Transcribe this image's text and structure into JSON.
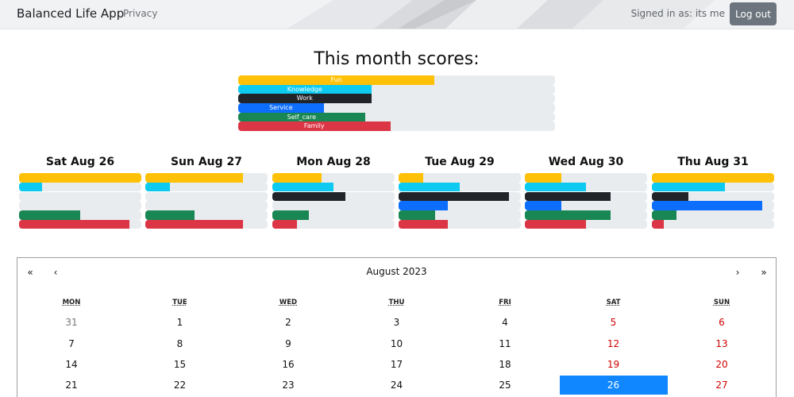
{
  "navbar": {
    "brand": "Balanced Life App",
    "privacy_link": "Privacy",
    "signed_in_text": "Signed in as: its me",
    "logout_label": "Log out"
  },
  "colors": {
    "fun": "#ffc107",
    "knowledge": "#0dcaf0",
    "work": "#212529",
    "service": "#0d6efd",
    "self_care": "#198754",
    "family": "#dc3545",
    "track": "#e9ecef",
    "selected_day": "#1087ff"
  },
  "month_scores": {
    "title": "This month scores:",
    "bars": [
      {
        "label": "Fun",
        "color_key": "fun",
        "fraction": 0.62
      },
      {
        "label": "Knowledge",
        "color_key": "knowledge",
        "fraction": 0.42
      },
      {
        "label": "Work",
        "color_key": "work",
        "fraction": 0.42
      },
      {
        "label": "Service",
        "color_key": "service",
        "fraction": 0.27
      },
      {
        "label": "Self_care",
        "color_key": "self_care",
        "fraction": 0.4
      },
      {
        "label": "Family",
        "color_key": "family",
        "fraction": 0.48
      }
    ]
  },
  "days": [
    {
      "title": "Sat Aug 26",
      "values": [
        1.0,
        0.19,
        0.0,
        0.0,
        0.5,
        0.9
      ]
    },
    {
      "title": "Sun Aug 27",
      "values": [
        0.8,
        0.2,
        0.0,
        0.0,
        0.4,
        0.8
      ]
    },
    {
      "title": "Mon Aug 28",
      "values": [
        0.4,
        0.5,
        0.6,
        0.0,
        0.3,
        0.2
      ]
    },
    {
      "title": "Tue Aug 29",
      "values": [
        0.2,
        0.5,
        0.9,
        0.4,
        0.3,
        0.4
      ]
    },
    {
      "title": "Wed Aug 30",
      "values": [
        0.3,
        0.5,
        0.7,
        0.3,
        0.7,
        0.5
      ]
    },
    {
      "title": "Thu Aug 31",
      "values": [
        1.0,
        0.6,
        0.3,
        0.9,
        0.2,
        0.1
      ]
    }
  ],
  "category_order": [
    "fun",
    "knowledge",
    "work",
    "service",
    "self_care",
    "family"
  ],
  "calendar": {
    "prev_year": "«",
    "prev_month": "‹",
    "next_month": "›",
    "next_year": "»",
    "month_label": "August 2023",
    "weekdays": [
      "MON",
      "TUE",
      "WED",
      "THU",
      "FRI",
      "SAT",
      "SUN"
    ],
    "weeks": [
      [
        {
          "d": "31",
          "t": "neighbor"
        },
        {
          "d": "1"
        },
        {
          "d": "2"
        },
        {
          "d": "3"
        },
        {
          "d": "4"
        },
        {
          "d": "5",
          "t": "weekend"
        },
        {
          "d": "6",
          "t": "weekend"
        }
      ],
      [
        {
          "d": "7"
        },
        {
          "d": "8"
        },
        {
          "d": "9"
        },
        {
          "d": "10"
        },
        {
          "d": "11"
        },
        {
          "d": "12",
          "t": "weekend"
        },
        {
          "d": "13",
          "t": "weekend"
        }
      ],
      [
        {
          "d": "14"
        },
        {
          "d": "15"
        },
        {
          "d": "16"
        },
        {
          "d": "17"
        },
        {
          "d": "18"
        },
        {
          "d": "19",
          "t": "weekend"
        },
        {
          "d": "20",
          "t": "weekend"
        }
      ],
      [
        {
          "d": "21"
        },
        {
          "d": "22"
        },
        {
          "d": "23"
        },
        {
          "d": "24"
        },
        {
          "d": "25"
        },
        {
          "d": "26",
          "t": "active"
        },
        {
          "d": "27",
          "t": "weekend"
        }
      ]
    ]
  }
}
